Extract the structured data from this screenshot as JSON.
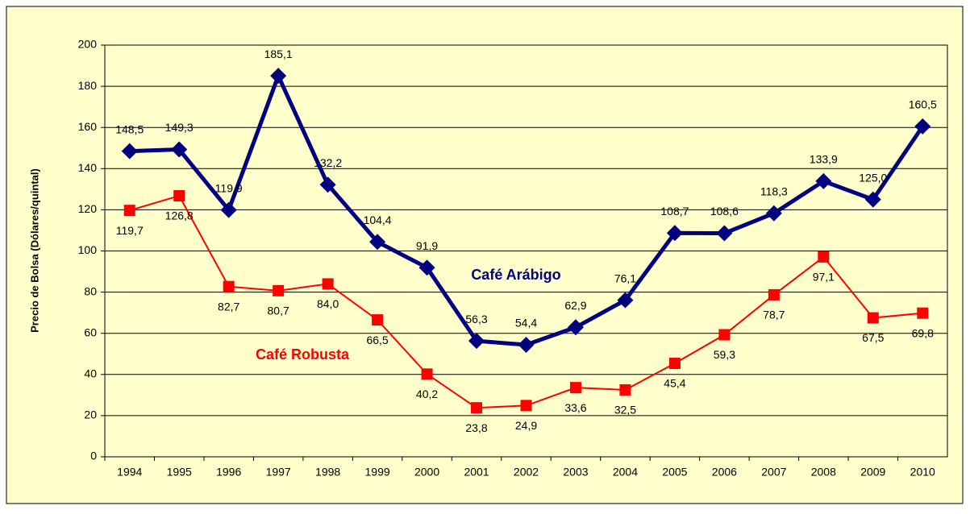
{
  "chart_data": {
    "type": "line",
    "y_label": "Precio de Bolsa (Dólares/quintal)",
    "categories": [
      "1994",
      "1995",
      "1996",
      "1997",
      "1998",
      "1999",
      "2000",
      "2001",
      "2002",
      "2003",
      "2004",
      "2005",
      "2006",
      "2007",
      "2008",
      "2009",
      "2010"
    ],
    "series": [
      {
        "name": "Café Arábigo",
        "color": "#000080",
        "marker": "diamond",
        "values": [
          148.5,
          149.3,
          119.9,
          185.1,
          132.2,
          104.4,
          91.9,
          56.3,
          54.4,
          62.9,
          76.1,
          108.7,
          108.6,
          118.3,
          133.9,
          125.0,
          160.5
        ],
        "value_labels": [
          "148,5",
          "149,3",
          "119,9",
          "185,1",
          "132,2",
          "104,4",
          "91,9",
          "56,3",
          "54,4",
          "62,9",
          "76,1",
          "108,7",
          "108,6",
          "118,3",
          "133,9",
          "125,0",
          "160,5"
        ]
      },
      {
        "name": "Café Robusta",
        "color": "#ff0000",
        "marker": "square",
        "values": [
          119.7,
          126.8,
          82.7,
          80.7,
          84.0,
          66.5,
          40.2,
          23.8,
          24.9,
          33.6,
          32.5,
          45.4,
          59.3,
          78.7,
          97.1,
          67.5,
          69.8
        ],
        "value_labels": [
          "119,7",
          "126,8",
          "82,7",
          "80,7",
          "84,0",
          "66,5",
          "40,2",
          "23,8",
          "24,9",
          "33,6",
          "32,5",
          "45,4",
          "59,3",
          "78,7",
          "97,1",
          "67,5",
          "69,8"
        ]
      }
    ],
    "ylim": [
      0,
      200
    ],
    "yticks": [
      0,
      20,
      40,
      60,
      80,
      100,
      120,
      140,
      160,
      180,
      200
    ],
    "grid": true
  }
}
